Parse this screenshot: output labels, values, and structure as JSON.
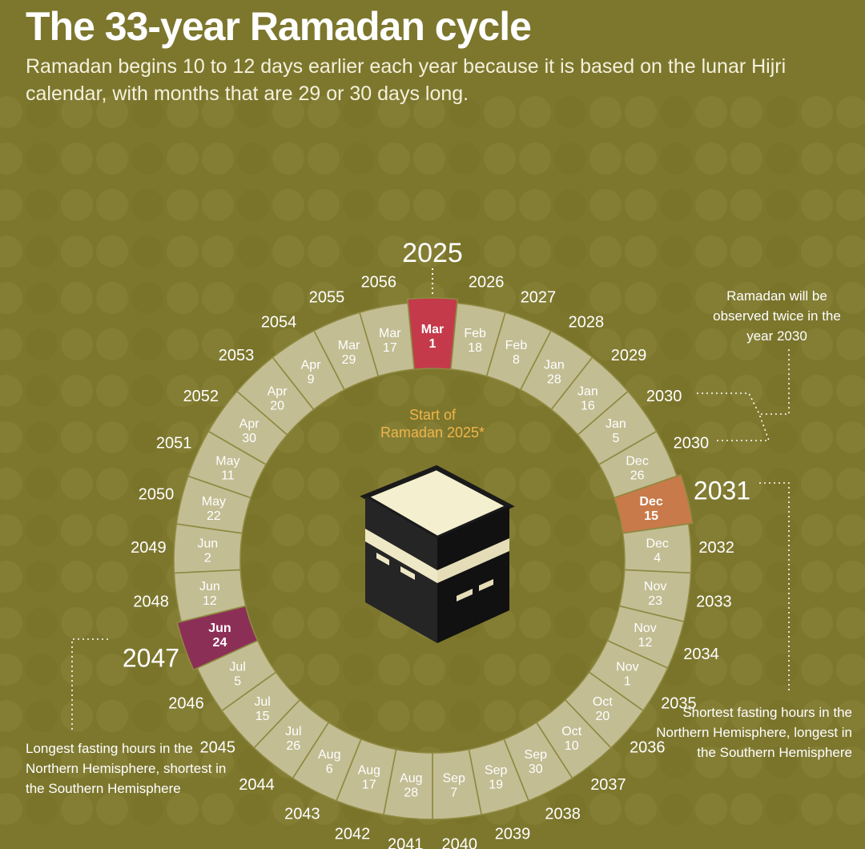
{
  "title": "The 33-year Ramadan cycle",
  "subtitle": "Ramadan begins 10 to 12 days earlier each year because it is based on the lunar Hijri calendar, with months that are 29 or 30 days long.",
  "center_label": [
    "Start of",
    "Ramadan 2025*"
  ],
  "top_year": "2025",
  "years": [
    "2025",
    "2026",
    "2027",
    "2028",
    "2029",
    "2030",
    "2030",
    "2031",
    "2032",
    "2033",
    "2034",
    "2035",
    "2036",
    "2037",
    "2038",
    "2039",
    "2040",
    "2041",
    "2042",
    "2043",
    "2044",
    "2045",
    "2046",
    "2047",
    "2048",
    "2049",
    "2050",
    "2051",
    "2052",
    "2053",
    "2054",
    "2055",
    "2056"
  ],
  "start_dates": [
    [
      "Mar",
      "1"
    ],
    [
      "Feb",
      "18"
    ],
    [
      "Feb",
      "8"
    ],
    [
      "Jan",
      "28"
    ],
    [
      "Jan",
      "16"
    ],
    [
      "Jan",
      "5"
    ],
    [
      "Dec",
      "26"
    ],
    [
      "Dec",
      "15"
    ],
    [
      "Dec",
      "4"
    ],
    [
      "Nov",
      "23"
    ],
    [
      "Nov",
      "12"
    ],
    [
      "Nov",
      "1"
    ],
    [
      "Oct",
      "20"
    ],
    [
      "Oct",
      "10"
    ],
    [
      "Sep",
      "30"
    ],
    [
      "Sep",
      "19"
    ],
    [
      "Sep",
      "7"
    ],
    [
      "Aug",
      "28"
    ],
    [
      "Aug",
      "17"
    ],
    [
      "Aug",
      "6"
    ],
    [
      "Jul",
      "26"
    ],
    [
      "Jul",
      "15"
    ],
    [
      "Jul",
      "5"
    ],
    [
      "Jun",
      "24"
    ],
    [
      "Jun",
      "12"
    ],
    [
      "Jun",
      "2"
    ],
    [
      "May",
      "22"
    ],
    [
      "May",
      "11"
    ],
    [
      "Apr",
      "30"
    ],
    [
      "Apr",
      "20"
    ],
    [
      "Apr",
      "9"
    ],
    [
      "Mar",
      "29"
    ],
    [
      "Mar",
      "17"
    ]
  ],
  "highlights": [
    {
      "index": 0,
      "color": "#c43a4b",
      "year_text": "2025"
    },
    {
      "index": 7,
      "color": "#c97a4a",
      "year_text": "2031"
    },
    {
      "index": 23,
      "color": "#8c2f57",
      "year_text": "2047"
    }
  ],
  "notes": {
    "year_2030": "Ramadan will be observed twice in the year 2030",
    "shortest": "Shortest fasting hours in the Northern Hemisphere, longest in the Southern Hemisphere",
    "longest": "Longest fasting hours in the Northern Hemisphere, shortest in the Southern Hemisphere"
  },
  "colors": {
    "background": "#7d772e",
    "ring": "#c2bd93",
    "ring_text": "#ffffff",
    "center_label": "#f0b54a",
    "kaaba": "#1a1a1a",
    "kaaba_top": "#f4efcf",
    "kaaba_band": "#efe8c6"
  }
}
